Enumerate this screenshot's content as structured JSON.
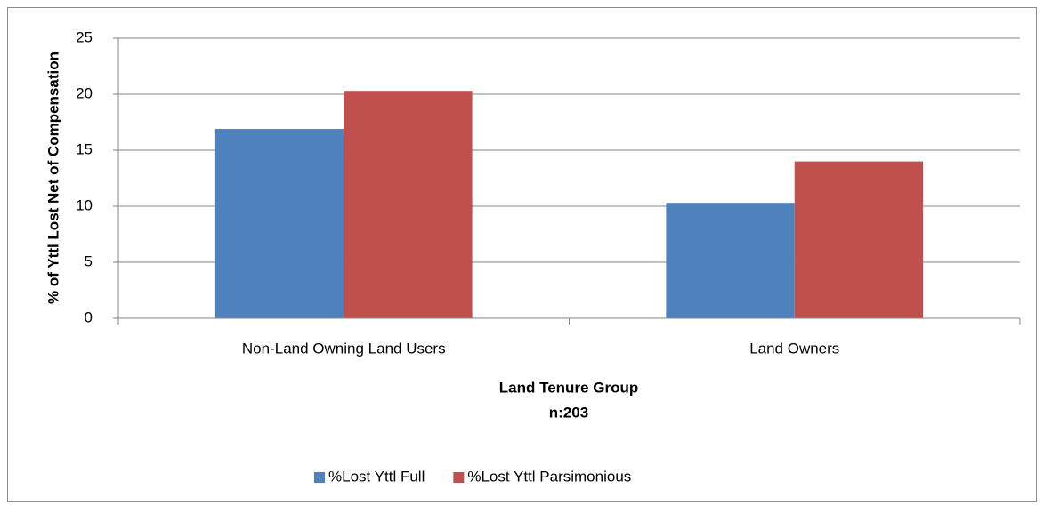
{
  "chart_data": {
    "type": "bar",
    "categories": [
      "Non-Land Owning Land Users",
      "Land Owners"
    ],
    "series": [
      {
        "name": "%Lost Yttl Full",
        "color": "#4f81bd",
        "values": [
          16.9,
          10.3
        ]
      },
      {
        "name": "%Lost Yttl Parsimonious",
        "color": "#c0504d",
        "values": [
          20.3,
          14.0
        ]
      }
    ],
    "x_label": [
      "Land Tenure Group",
      "n:203"
    ],
    "y_label": "% of Yttl Lost Net of Compensation",
    "ylim": [
      0,
      25
    ],
    "yticks": [
      0,
      5,
      10,
      15,
      20,
      25
    ],
    "grid": true,
    "legend": "bottom"
  }
}
